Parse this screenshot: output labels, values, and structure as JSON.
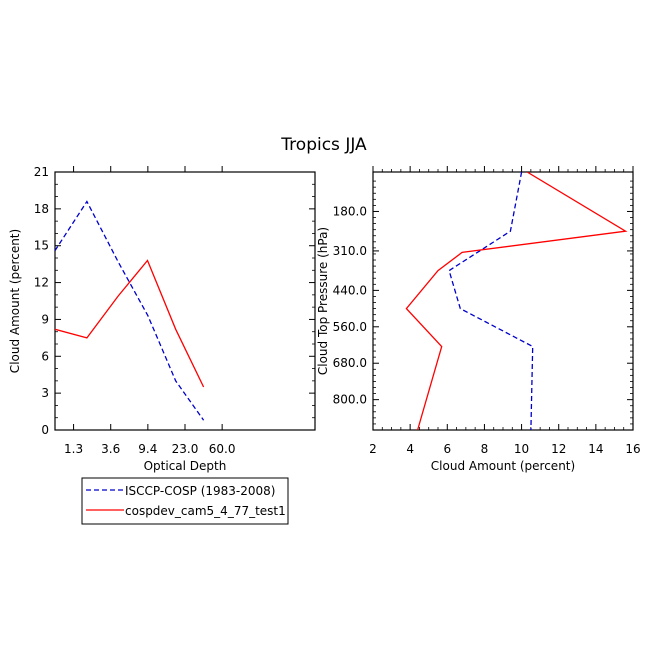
{
  "title": "Tropics JJA",
  "legend": {
    "placement": "below-left",
    "entries": [
      {
        "label": "ISCCP-COSP (1983-2008)",
        "color": "#0000cc",
        "dash": "dashed"
      },
      {
        "label": "cospdev_cam5_4_77_test1",
        "color": "#ff0000",
        "dash": "solid"
      }
    ]
  },
  "chart_data": [
    {
      "type": "line",
      "xlabel": "Optical Depth",
      "ylabel": "Cloud Amount (percent)",
      "xlim": [
        0.5,
        7.5
      ],
      "ylim": [
        0,
        21
      ],
      "x_ticks": [
        {
          "v": 1,
          "label": "1.3"
        },
        {
          "v": 2,
          "label": "3.6"
        },
        {
          "v": 3,
          "label": "9.4"
        },
        {
          "v": 4,
          "label": "23.0"
        },
        {
          "v": 5,
          "label": "60.0"
        }
      ],
      "y_ticks": [
        0,
        3,
        6,
        9,
        12,
        15,
        18,
        21
      ],
      "series": [
        {
          "name": "ISCCP-COSP (1983-2008)",
          "color": "#0000cc",
          "dash": "dashed",
          "points": [
            [
              0.5,
              14.6
            ],
            [
              1.36,
              18.6
            ],
            [
              2.2,
              13.7
            ],
            [
              3.0,
              9.3
            ],
            [
              3.75,
              4.0
            ],
            [
              4.5,
              0.8
            ]
          ]
        },
        {
          "name": "cospdev_cam5_4_77_test1",
          "color": "#ff0000",
          "dash": "solid",
          "points": [
            [
              0.5,
              8.2
            ],
            [
              1.36,
              7.5
            ],
            [
              2.2,
              10.9
            ],
            [
              2.99,
              13.8
            ],
            [
              3.75,
              8.2
            ],
            [
              4.5,
              3.5
            ]
          ]
        }
      ]
    },
    {
      "type": "line",
      "xlabel": "Cloud Amount (percent)",
      "ylabel": "Cloud Top Pressure (hPa)",
      "xlim": [
        2,
        16
      ],
      "ylim": [
        50,
        900
      ],
      "y_inverted": true,
      "x_ticks": [
        2,
        4,
        6,
        8,
        10,
        12,
        14,
        16
      ],
      "y_ticks": [
        {
          "v": 180,
          "label": "180.0"
        },
        {
          "v": 310,
          "label": "310.0"
        },
        {
          "v": 440,
          "label": "440.0"
        },
        {
          "v": 560,
          "label": "560.0"
        },
        {
          "v": 680,
          "label": "680.0"
        },
        {
          "v": 800,
          "label": "800.0"
        }
      ],
      "series": [
        {
          "name": "ISCCP-COSP (1983-2008)",
          "color": "#0000cc",
          "dash": "dashed",
          "points": [
            [
              10.0,
              50
            ],
            [
              9.4,
              245
            ],
            [
              6.1,
              375
            ],
            [
              6.7,
              500
            ],
            [
              10.6,
              625
            ],
            [
              10.5,
              900
            ]
          ]
        },
        {
          "name": "cospdev_cam5_4_77_test1",
          "color": "#ff0000",
          "dash": "solid",
          "points": [
            [
              10.3,
              50
            ],
            [
              15.6,
              245
            ],
            [
              6.8,
              315
            ],
            [
              5.5,
              375
            ],
            [
              3.8,
              500
            ],
            [
              5.7,
              625
            ],
            [
              4.4,
              900
            ]
          ]
        }
      ]
    }
  ]
}
